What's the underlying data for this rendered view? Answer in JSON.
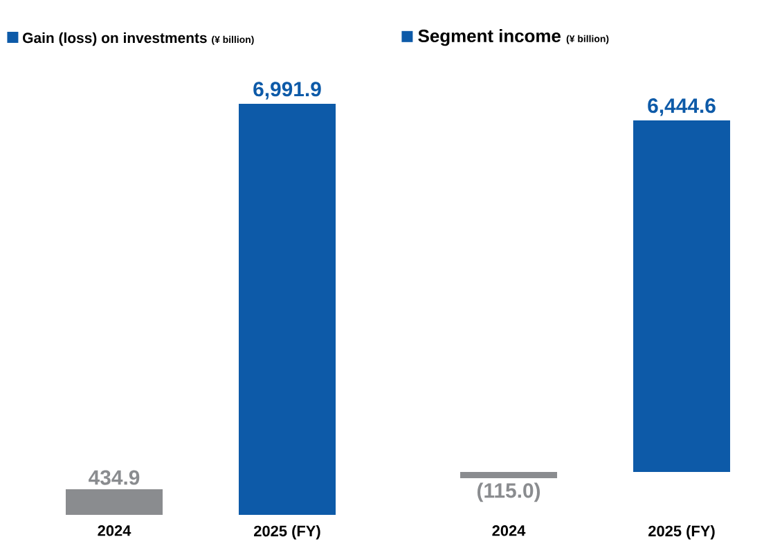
{
  "chart_data": [
    {
      "type": "bar",
      "title": "Gain (loss) on investments",
      "subtitle": "(¥ billion)",
      "categories": [
        "2024",
        "2025 (FY)"
      ],
      "values": [
        434.9,
        6991.9
      ],
      "colors": [
        "#8a8c8f",
        "#0d5aa8"
      ],
      "value_labels": [
        "434.9",
        "6,991.9"
      ]
    },
    {
      "type": "bar",
      "title": "Segment income",
      "subtitle": "(¥ billion)",
      "categories": [
        "2024",
        "2025 (FY)"
      ],
      "values": [
        -115.0,
        6444.6
      ],
      "colors": [
        "#8a8c8f",
        "#0d5aa8"
      ],
      "value_labels": [
        "(115.0)",
        "6,444.6"
      ]
    }
  ]
}
